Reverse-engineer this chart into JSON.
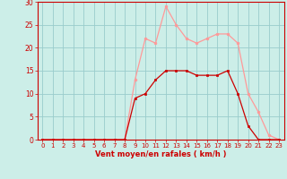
{
  "hours": [
    0,
    1,
    2,
    3,
    4,
    5,
    6,
    7,
    8,
    9,
    10,
    11,
    12,
    13,
    14,
    15,
    16,
    17,
    18,
    19,
    20,
    21,
    22,
    23
  ],
  "moyen": [
    0,
    0,
    0,
    0,
    0,
    0,
    0,
    0,
    0,
    9,
    10,
    13,
    15,
    15,
    15,
    14,
    14,
    14,
    15,
    10,
    3,
    0,
    0,
    0
  ],
  "rafales": [
    0,
    0,
    0,
    0,
    0,
    0,
    0,
    0,
    0,
    13,
    22,
    21,
    29,
    25,
    22,
    21,
    22,
    23,
    23,
    21,
    10,
    6,
    1,
    0
  ],
  "color_moyen": "#cc0000",
  "color_rafales": "#ff9999",
  "bg_color": "#cceee8",
  "grid_color": "#99cccc",
  "axis_color": "#cc0000",
  "xlabel": "Vent moyen/en rafales ( km/h )",
  "ylim": [
    0,
    30
  ],
  "xlim": [
    -0.5,
    23.5
  ],
  "yticks": [
    0,
    5,
    10,
    15,
    20,
    25,
    30
  ],
  "xticks": [
    0,
    1,
    2,
    3,
    4,
    5,
    6,
    7,
    8,
    9,
    10,
    11,
    12,
    13,
    14,
    15,
    16,
    17,
    18,
    19,
    20,
    21,
    22,
    23
  ]
}
